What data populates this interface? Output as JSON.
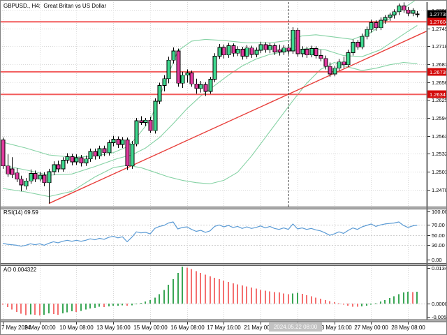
{
  "window": {
    "title": "GBPUSD., H4:  Great Britan vs US Dollar"
  },
  "panels": {
    "rsi_label": "RSI(14) 69.59",
    "ao_label": "AO 0.004322"
  },
  "crosshair": {
    "bar": 62,
    "time_label": "2024.05.22 08:00"
  },
  "chart_data": {
    "type": "candlestick",
    "symbol": "GBPUSD",
    "timeframe": "H4",
    "description": "Great Britan vs US Dollar",
    "price_axis": {
      "ticks": [
        1.278,
        1.2749,
        1.2718,
        1.2687,
        1.2656,
        1.2625,
        1.2594,
        1.2563,
        1.2532,
        1.2501,
        1.247
      ],
      "current_price": "1.27738",
      "current_price_value": 1.27738
    },
    "levels": [
      {
        "value": 1.27604,
        "label": "1.27604"
      },
      {
        "value": 1.26738,
        "label": "1.26738"
      },
      {
        "value": 1.26347,
        "label": "1.26347"
      }
    ],
    "time_axis": {
      "tick_bars": [
        0,
        8,
        16,
        24,
        32,
        40,
        48,
        56,
        64,
        72,
        80,
        88
      ],
      "labels": [
        "7 May 2024",
        "9 May 00:00",
        "10 May 08:00",
        "13 May 16:00",
        "15 May 00:00",
        "16 May 08:00",
        "17 May 16:00",
        "21 May 00:00",
        "22 May 08:00",
        "23 May 16:00",
        "27 May 00:00",
        "28 May 08:00"
      ]
    },
    "candles": [
      [
        1.2556,
        1.256,
        1.2506,
        1.2511
      ],
      [
        1.2511,
        1.2531,
        1.2492,
        1.2497
      ],
      [
        1.2506,
        1.2526,
        1.249,
        1.2496
      ],
      [
        1.2499,
        1.2507,
        1.2483,
        1.2488
      ],
      [
        1.2488,
        1.2494,
        1.2467,
        1.2478
      ],
      [
        1.2476,
        1.249,
        1.247,
        1.2485
      ],
      [
        1.2485,
        1.2505,
        1.248,
        1.2498
      ],
      [
        1.2498,
        1.2503,
        1.2483,
        1.2488
      ],
      [
        1.2488,
        1.2501,
        1.2484,
        1.2495
      ],
      [
        1.2495,
        1.25,
        1.2476,
        1.2482
      ],
      [
        1.2482,
        1.2506,
        1.2446,
        1.2501
      ],
      [
        1.2501,
        1.2519,
        1.2495,
        1.2513
      ],
      [
        1.2513,
        1.252,
        1.25,
        1.2506
      ],
      [
        1.2506,
        1.2526,
        1.2501,
        1.2521
      ],
      [
        1.2521,
        1.2533,
        1.2515,
        1.2527
      ],
      [
        1.2527,
        1.2532,
        1.2512,
        1.2518
      ],
      [
        1.2518,
        1.2531,
        1.2513,
        1.2525
      ],
      [
        1.2525,
        1.253,
        1.251,
        1.2516
      ],
      [
        1.2516,
        1.2529,
        1.2511,
        1.2523
      ],
      [
        1.2523,
        1.2541,
        1.2518,
        1.2536
      ],
      [
        1.2536,
        1.2541,
        1.2522,
        1.2528
      ],
      [
        1.2528,
        1.2546,
        1.2523,
        1.2541
      ],
      [
        1.2541,
        1.2546,
        1.2528,
        1.2534
      ],
      [
        1.2534,
        1.2556,
        1.2529,
        1.2551
      ],
      [
        1.2551,
        1.2563,
        1.2545,
        1.2557
      ],
      [
        1.2557,
        1.2562,
        1.2542,
        1.2548
      ],
      [
        1.2548,
        1.2561,
        1.2542,
        1.2556
      ],
      [
        1.2556,
        1.256,
        1.2504,
        1.2511
      ],
      [
        1.2511,
        1.2554,
        1.2506,
        1.2549
      ],
      [
        1.2549,
        1.2594,
        1.2545,
        1.2589
      ],
      [
        1.2589,
        1.2597,
        1.2582,
        1.2586
      ],
      [
        1.2586,
        1.2594,
        1.258,
        1.259
      ],
      [
        1.259,
        1.2596,
        1.2568,
        1.2572
      ],
      [
        1.2572,
        1.2628,
        1.2567,
        1.2623
      ],
      [
        1.2623,
        1.2655,
        1.2618,
        1.265
      ],
      [
        1.265,
        1.2668,
        1.264,
        1.2662
      ],
      [
        1.2662,
        1.27,
        1.2654,
        1.2694
      ],
      [
        1.2694,
        1.2716,
        1.2688,
        1.271
      ],
      [
        1.271,
        1.2714,
        1.2648,
        1.2654
      ],
      [
        1.2654,
        1.2674,
        1.2646,
        1.2668
      ],
      [
        1.2668,
        1.2678,
        1.2655,
        1.2672
      ],
      [
        1.2672,
        1.2676,
        1.2648,
        1.2653
      ],
      [
        1.2653,
        1.2662,
        1.2636,
        1.2645
      ],
      [
        1.2645,
        1.2658,
        1.2638,
        1.2652
      ],
      [
        1.2652,
        1.2656,
        1.2632,
        1.264
      ],
      [
        1.264,
        1.2665,
        1.2636,
        1.2661
      ],
      [
        1.2661,
        1.2706,
        1.2656,
        1.2701
      ],
      [
        1.2701,
        1.2722,
        1.2696,
        1.2716
      ],
      [
        1.2716,
        1.2721,
        1.2697,
        1.2703
      ],
      [
        1.2703,
        1.2724,
        1.2698,
        1.2719
      ],
      [
        1.2719,
        1.2723,
        1.27,
        1.2706
      ],
      [
        1.2706,
        1.2718,
        1.2701,
        1.2713
      ],
      [
        1.2713,
        1.2717,
        1.2695,
        1.2701
      ],
      [
        1.2701,
        1.272,
        1.2696,
        1.2715
      ],
      [
        1.2715,
        1.2719,
        1.2698,
        1.2704
      ],
      [
        1.2704,
        1.2716,
        1.2699,
        1.2711
      ],
      [
        1.2711,
        1.2726,
        1.2706,
        1.2721
      ],
      [
        1.2721,
        1.2725,
        1.2707,
        1.2712
      ],
      [
        1.2712,
        1.2724,
        1.2706,
        1.2719
      ],
      [
        1.2719,
        1.2723,
        1.2703,
        1.2708
      ],
      [
        1.2712,
        1.2721,
        1.2702,
        1.2708
      ],
      [
        1.2708,
        1.272,
        1.2703,
        1.2715
      ],
      [
        1.2715,
        1.2722,
        1.2704,
        1.271
      ],
      [
        1.271,
        1.2751,
        1.2705,
        1.2746
      ],
      [
        1.2746,
        1.275,
        1.27,
        1.2705
      ],
      [
        1.2705,
        1.2718,
        1.2699,
        1.2713
      ],
      [
        1.2713,
        1.2717,
        1.2698,
        1.2703
      ],
      [
        1.2703,
        1.2719,
        1.2699,
        1.2714
      ],
      [
        1.2714,
        1.2718,
        1.2697,
        1.2702
      ],
      [
        1.2702,
        1.2712,
        1.2692,
        1.2697
      ],
      [
        1.2697,
        1.2702,
        1.2678,
        1.2683
      ],
      [
        1.2683,
        1.269,
        1.2665,
        1.267
      ],
      [
        1.267,
        1.2684,
        1.2666,
        1.268
      ],
      [
        1.268,
        1.2696,
        1.2676,
        1.2691
      ],
      [
        1.2691,
        1.27,
        1.268,
        1.2686
      ],
      [
        1.2686,
        1.2712,
        1.2682,
        1.2707
      ],
      [
        1.2707,
        1.273,
        1.2702,
        1.2725
      ],
      [
        1.2725,
        1.2729,
        1.2712,
        1.2717
      ],
      [
        1.2717,
        1.274,
        1.2713,
        1.2735
      ],
      [
        1.2735,
        1.2752,
        1.273,
        1.2747
      ],
      [
        1.2747,
        1.2764,
        1.2742,
        1.2759
      ],
      [
        1.2759,
        1.2763,
        1.2745,
        1.275
      ],
      [
        1.275,
        1.2768,
        1.2746,
        1.2763
      ],
      [
        1.2763,
        1.2772,
        1.2757,
        1.2768
      ],
      [
        1.2768,
        1.2776,
        1.2762,
        1.2772
      ],
      [
        1.2772,
        1.2782,
        1.2766,
        1.2778
      ],
      [
        1.2778,
        1.2792,
        1.2772,
        1.2788
      ],
      [
        1.2788,
        1.2794,
        1.2776,
        1.2781
      ],
      [
        1.2781,
        1.2786,
        1.277,
        1.2775
      ],
      [
        1.2775,
        1.2784,
        1.277,
        1.278
      ],
      [
        1.2773,
        1.2779,
        1.2768,
        1.2774
      ]
    ],
    "bollinger": {
      "upper": [
        [
          0,
          1.2552
        ],
        [
          5,
          1.2542
        ],
        [
          10,
          1.253
        ],
        [
          15,
          1.2526
        ],
        [
          20,
          1.2528
        ],
        [
          24,
          1.2534
        ],
        [
          27,
          1.2544
        ],
        [
          29,
          1.256
        ],
        [
          32,
          1.259
        ],
        [
          35,
          1.265
        ],
        [
          38,
          1.271
        ],
        [
          41,
          1.2727
        ],
        [
          44,
          1.273
        ],
        [
          48,
          1.2728
        ],
        [
          53,
          1.2724
        ],
        [
          58,
          1.2724
        ],
        [
          62,
          1.2728
        ],
        [
          65,
          1.2736
        ],
        [
          68,
          1.2738
        ],
        [
          72,
          1.2734
        ],
        [
          76,
          1.273
        ],
        [
          80,
          1.2742
        ],
        [
          83,
          1.276
        ],
        [
          86,
          1.2778
        ],
        [
          90,
          1.28
        ]
      ],
      "middle": [
        [
          0,
          1.2512
        ],
        [
          5,
          1.2504
        ],
        [
          10,
          1.2495
        ],
        [
          15,
          1.2497
        ],
        [
          20,
          1.251
        ],
        [
          25,
          1.2524
        ],
        [
          28,
          1.253
        ],
        [
          31,
          1.2542
        ],
        [
          34,
          1.256
        ],
        [
          37,
          1.2584
        ],
        [
          40,
          1.261
        ],
        [
          43,
          1.2632
        ],
        [
          46,
          1.265
        ],
        [
          49,
          1.2668
        ],
        [
          52,
          1.2684
        ],
        [
          55,
          1.2696
        ],
        [
          58,
          1.2704
        ],
        [
          62,
          1.271
        ],
        [
          66,
          1.2714
        ],
        [
          70,
          1.2712
        ],
        [
          74,
          1.2702
        ],
        [
          78,
          1.27
        ],
        [
          82,
          1.2712
        ],
        [
          85,
          1.2728
        ],
        [
          88,
          1.2744
        ],
        [
          90,
          1.2754
        ]
      ],
      "lower": [
        [
          0,
          1.2472
        ],
        [
          5,
          1.2466
        ],
        [
          10,
          1.2458
        ],
        [
          15,
          1.2467
        ],
        [
          20,
          1.2492
        ],
        [
          24,
          1.2508
        ],
        [
          27,
          1.2512
        ],
        [
          30,
          1.2508
        ],
        [
          33,
          1.25
        ],
        [
          36,
          1.2492
        ],
        [
          39,
          1.2486
        ],
        [
          42,
          1.2482
        ],
        [
          45,
          1.248
        ],
        [
          48,
          1.2486
        ],
        [
          51,
          1.25
        ],
        [
          54,
          1.2528
        ],
        [
          57,
          1.256
        ],
        [
          60,
          1.2592
        ],
        [
          63,
          1.2624
        ],
        [
          66,
          1.2654
        ],
        [
          69,
          1.2678
        ],
        [
          72,
          1.269
        ],
        [
          75,
          1.2682
        ],
        [
          78,
          1.2676
        ],
        [
          81,
          1.268
        ],
        [
          84,
          1.2686
        ],
        [
          87,
          1.269
        ],
        [
          90,
          1.2688
        ]
      ]
    },
    "trendline": {
      "points": [
        [
          10,
          1.2446
        ],
        [
          92,
          1.2744
        ]
      ]
    },
    "rsi": {
      "period": 14,
      "current": 69.59,
      "levels": [
        100.0,
        70.0,
        50.0,
        30.0,
        0.0
      ],
      "grid_levels": [
        70,
        50,
        30
      ],
      "values": [
        33,
        31,
        30,
        29,
        27,
        29,
        32,
        30,
        32,
        29,
        33,
        36,
        34,
        37,
        39,
        37,
        39,
        37,
        39,
        42,
        40,
        43,
        41,
        45,
        47,
        44,
        46,
        36,
        45,
        56,
        54,
        55,
        52,
        63,
        67,
        69,
        74,
        76,
        62,
        65,
        66,
        61,
        57,
        59,
        55,
        58,
        67,
        70,
        66,
        69,
        65,
        67,
        63,
        66,
        63,
        65,
        68,
        64,
        67,
        63,
        61,
        64,
        61,
        72,
        62,
        64,
        61,
        63,
        60,
        58,
        54,
        49,
        52,
        56,
        53,
        59,
        64,
        61,
        66,
        69,
        72,
        67,
        70,
        72,
        73,
        74,
        76,
        69,
        65,
        68,
        69.59
      ]
    },
    "ao": {
      "current": 0.004322,
      "axis_labels": [
        "0.013470",
        "0.000000",
        "-0.005833"
      ],
      "axis_values": [
        0.01347,
        0.0,
        -0.005833
      ],
      "values": [
        -0.0004,
        -0.0013,
        -0.0022,
        -0.003,
        -0.0037,
        -0.0042,
        -0.0039,
        -0.0041,
        -0.0043,
        -0.004,
        -0.0036,
        -0.0038,
        -0.004,
        -0.0036,
        -0.0032,
        -0.0028,
        -0.003,
        -0.0026,
        -0.0022,
        -0.0018,
        -0.0015,
        -0.0012,
        -0.0013,
        -0.001,
        -0.0008,
        -0.0007,
        -0.0006,
        -0.0008,
        -0.0006,
        -0.0003,
        0.0002,
        0.0007,
        0.0013,
        0.0022,
        0.0034,
        0.005,
        0.0068,
        0.0088,
        0.0112,
        0.01347,
        0.0131,
        0.0125,
        0.0118,
        0.0111,
        0.0105,
        0.0099,
        0.0094,
        0.0089,
        0.0084,
        0.0079,
        0.0074,
        0.007,
        0.0066,
        0.0062,
        0.0058,
        0.0054,
        0.005,
        0.0047,
        0.0044,
        0.0042,
        0.004,
        0.0037,
        0.0034,
        0.0037,
        0.0039,
        0.0035,
        0.003,
        0.0026,
        0.0022,
        0.0018,
        0.0013,
        0.0009,
        0.0005,
        0.0001,
        -0.0004,
        -0.0008,
        -0.0011,
        -0.0012,
        -0.001,
        -0.0007,
        -0.0004,
        0.0001,
        0.0007,
        0.0013,
        0.002,
        0.0027,
        0.0034,
        0.004,
        0.0043,
        0.0042,
        0.004322
      ]
    },
    "colors": {
      "bull": "#3fd98f",
      "bear": "#e23a9f",
      "candle_outline": "#000000",
      "bollinger": "#85d2a4",
      "level_line": "#f25c5c",
      "level_badge": "#d40b0b",
      "current_badge": "#000000",
      "trendline": "#e8403c",
      "rsi_line": "#5b9bd5",
      "ao_up": "#3aa655",
      "ao_down": "#f47070",
      "grid": "#d9d9d9",
      "frame": "#6b6b6b",
      "tooltip_bg": "#c2c2c2"
    }
  }
}
